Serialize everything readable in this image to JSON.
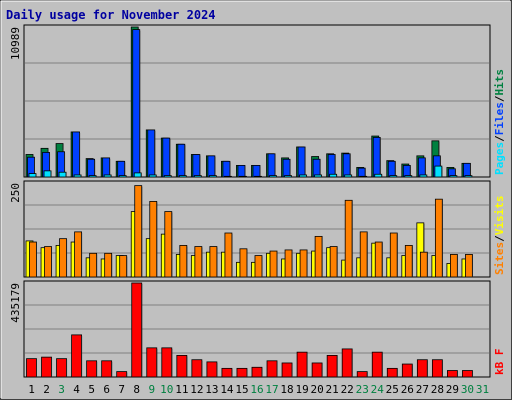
{
  "title": "Daily usage for November 2024",
  "colors": {
    "frame": "#c0c0c0",
    "plot_bg": "#c0c0c0",
    "grid": "#808080",
    "title": "#0000a0",
    "hits": "#008040",
    "files": "#0040ff",
    "pages": "#00e0ff",
    "visits": "#ffff00",
    "sites": "#ff8000",
    "kbytes": "#ff0000",
    "weekend_label": "#008040"
  },
  "chart_data": [
    {
      "type": "bar",
      "panel": "requests",
      "ymax_label": "10989",
      "ylim": [
        0,
        10989
      ],
      "axis_label_parts": [
        {
          "text": "Pages",
          "color_key": "pages"
        },
        {
          "text": "/",
          "color_key": "separator"
        },
        {
          "text": "Files",
          "color_key": "files"
        },
        {
          "text": "/",
          "color_key": "separator"
        },
        {
          "text": "Hits",
          "color_key": "hits"
        }
      ],
      "categories": [
        "1",
        "2",
        "3",
        "4",
        "5",
        "6",
        "7",
        "8",
        "9",
        "10",
        "11",
        "12",
        "13",
        "14",
        "15",
        "16",
        "17",
        "18",
        "19",
        "20",
        "21",
        "22",
        "23",
        "24",
        "25",
        "26",
        "27",
        "28",
        "29",
        "30",
        "31"
      ],
      "series": [
        {
          "name": "Hits",
          "color_key": "hits",
          "values": [
            1650,
            2100,
            2450,
            3300,
            1350,
            1400,
            1150,
            10989,
            3450,
            2850,
            2400,
            1650,
            1550,
            1150,
            850,
            850,
            1700,
            1400,
            2200,
            1500,
            1700,
            1750,
            700,
            3000,
            1200,
            950,
            1550,
            2650,
            700,
            1000,
            0
          ]
        },
        {
          "name": "Files",
          "color_key": "files",
          "values": [
            1450,
            1800,
            1850,
            3300,
            1300,
            1400,
            1150,
            10800,
            3450,
            2850,
            2400,
            1650,
            1550,
            1150,
            850,
            850,
            1700,
            1300,
            2200,
            1300,
            1650,
            1700,
            650,
            2900,
            1150,
            850,
            1400,
            1550,
            600,
            1000,
            0
          ]
        },
        {
          "name": "Pages",
          "color_key": "pages",
          "values": [
            250,
            450,
            350,
            150,
            100,
            150,
            100,
            300,
            150,
            100,
            100,
            100,
            100,
            50,
            50,
            50,
            100,
            100,
            150,
            150,
            200,
            150,
            50,
            200,
            100,
            100,
            150,
            800,
            100,
            100,
            0
          ]
        }
      ]
    },
    {
      "type": "bar",
      "panel": "visitors",
      "ymax_label": "250",
      "ylim": [
        0,
        250
      ],
      "axis_label_parts": [
        {
          "text": "Sites",
          "color_key": "sites"
        },
        {
          "text": "/",
          "color_key": "separator"
        },
        {
          "text": "Visits",
          "color_key": "visits"
        }
      ],
      "categories": [
        "1",
        "2",
        "3",
        "4",
        "5",
        "6",
        "7",
        "8",
        "9",
        "10",
        "11",
        "12",
        "13",
        "14",
        "15",
        "16",
        "17",
        "18",
        "19",
        "20",
        "21",
        "22",
        "23",
        "24",
        "25",
        "26",
        "27",
        "28",
        "29",
        "30",
        "31"
      ],
      "series": [
        {
          "name": "Visits",
          "color_key": "visits",
          "values": [
            96,
            78,
            84,
            93,
            51,
            48,
            57,
            174,
            102,
            114,
            60,
            57,
            66,
            66,
            39,
            39,
            63,
            48,
            63,
            69,
            78,
            45,
            51,
            90,
            51,
            57,
            144,
            57,
            36,
            48,
            0
          ]
        },
        {
          "name": "Sites",
          "color_key": "sites",
          "values": [
            93,
            81,
            102,
            120,
            63,
            63,
            57,
            243,
            201,
            174,
            84,
            81,
            81,
            117,
            75,
            57,
            69,
            72,
            72,
            108,
            81,
            204,
            120,
            93,
            117,
            84,
            66,
            207,
            60,
            60,
            0
          ]
        }
      ]
    },
    {
      "type": "bar",
      "panel": "kbytes",
      "ymax_label": "435179",
      "ylim": [
        0,
        435179
      ],
      "axis_label_parts": [
        {
          "text": "kB F",
          "color_key": "kbytes"
        }
      ],
      "categories": [
        "1",
        "2",
        "3",
        "4",
        "5",
        "6",
        "7",
        "8",
        "9",
        "10",
        "11",
        "12",
        "13",
        "14",
        "15",
        "16",
        "17",
        "18",
        "19",
        "20",
        "21",
        "22",
        "23",
        "24",
        "25",
        "26",
        "27",
        "28",
        "29",
        "30",
        "31"
      ],
      "series": [
        {
          "name": "kB F",
          "color_key": "kbytes",
          "values": [
            85000,
            92000,
            85000,
            195000,
            75000,
            75000,
            25000,
            435179,
            135000,
            135000,
            100000,
            80000,
            70000,
            40000,
            40000,
            45000,
            75000,
            65000,
            115000,
            65000,
            100000,
            130000,
            25000,
            115000,
            40000,
            60000,
            80000,
            80000,
            30000,
            30000,
            0
          ]
        }
      ]
    }
  ],
  "x_labels": [
    {
      "text": "1",
      "weekend": false
    },
    {
      "text": "2",
      "weekend": false
    },
    {
      "text": "3",
      "weekend": true
    },
    {
      "text": "4",
      "weekend": false
    },
    {
      "text": "5",
      "weekend": false
    },
    {
      "text": "6",
      "weekend": false
    },
    {
      "text": "7",
      "weekend": false
    },
    {
      "text": "8",
      "weekend": false
    },
    {
      "text": "9",
      "weekend": true
    },
    {
      "text": "10",
      "weekend": true
    },
    {
      "text": "11",
      "weekend": false
    },
    {
      "text": "12",
      "weekend": false
    },
    {
      "text": "13",
      "weekend": false
    },
    {
      "text": "14",
      "weekend": false
    },
    {
      "text": "15",
      "weekend": false
    },
    {
      "text": "16",
      "weekend": true
    },
    {
      "text": "17",
      "weekend": true
    },
    {
      "text": "18",
      "weekend": false
    },
    {
      "text": "19",
      "weekend": false
    },
    {
      "text": "20",
      "weekend": false
    },
    {
      "text": "21",
      "weekend": false
    },
    {
      "text": "22",
      "weekend": false
    },
    {
      "text": "23",
      "weekend": true
    },
    {
      "text": "24",
      "weekend": true
    },
    {
      "text": "25",
      "weekend": false
    },
    {
      "text": "26",
      "weekend": false
    },
    {
      "text": "27",
      "weekend": false
    },
    {
      "text": "28",
      "weekend": false
    },
    {
      "text": "29",
      "weekend": false
    },
    {
      "text": "30",
      "weekend": true
    },
    {
      "text": "31",
      "weekend": true
    }
  ]
}
